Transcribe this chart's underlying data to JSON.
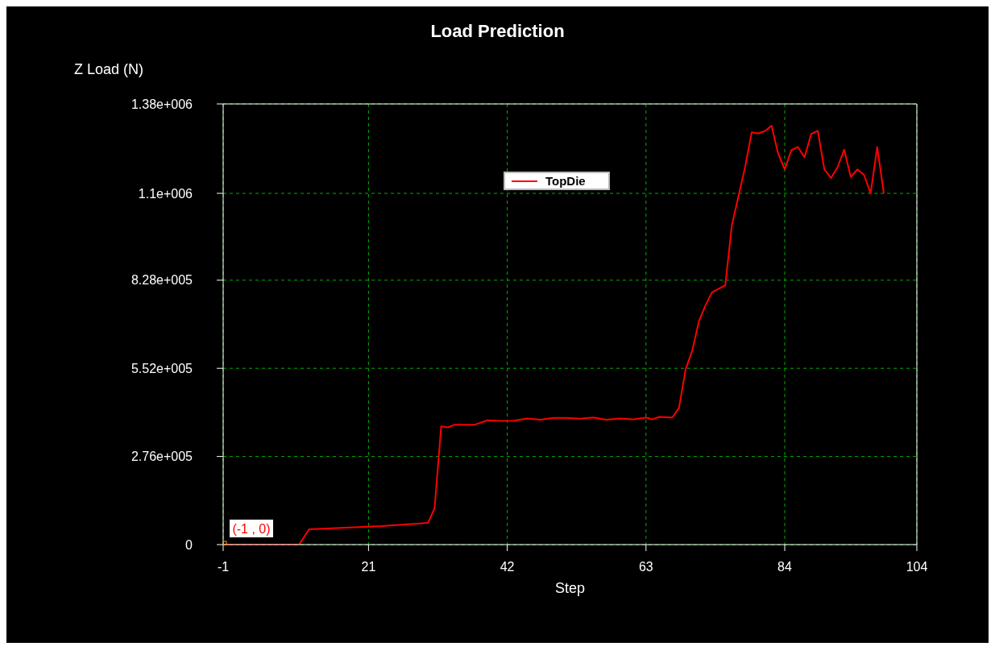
{
  "chart_data": {
    "type": "line",
    "title": "Load Prediction",
    "xlabel": "Step",
    "ylabel": "Z Load (N)",
    "xlim": [
      -1,
      104
    ],
    "ylim": [
      0,
      1380000
    ],
    "xticks": [
      -1,
      21,
      42,
      63,
      84,
      104
    ],
    "yticks": [
      0,
      {
        "value": 276000,
        "label": "2.76e+005"
      },
      {
        "value": 552000,
        "label": "5.52e+005"
      },
      {
        "value": 828000,
        "label": "8.28e+005"
      },
      {
        "value": 1100000,
        "label": "1.1e+006"
      },
      {
        "value": 1380000,
        "label": "1.38e+006"
      }
    ],
    "grid": true,
    "legend": "top",
    "marker": "none",
    "line_style": "solid",
    "annotations": [
      {
        "text": "(-1 , 0)",
        "x": -1,
        "y": 0
      }
    ],
    "series": [
      {
        "name": "TopDie",
        "color": "#ff0000",
        "x": [
          -1,
          10.5,
          12,
          23,
          30,
          31,
          32,
          33,
          34,
          37,
          39,
          41,
          43,
          45,
          47,
          49,
          51,
          53,
          55,
          57,
          59,
          61,
          63,
          64,
          65,
          67,
          68,
          69,
          70,
          71,
          72,
          73,
          75,
          76,
          78,
          79,
          80,
          81,
          82,
          83,
          84,
          85,
          86,
          87,
          88,
          89,
          90,
          91,
          92,
          93,
          94,
          95,
          96,
          97,
          98,
          99
        ],
        "values": [
          0,
          0,
          48000,
          58000,
          68000,
          114000,
          370000,
          367000,
          375000,
          375000,
          389000,
          387000,
          388000,
          395000,
          391000,
          397000,
          397000,
          394000,
          398000,
          391000,
          395000,
          392000,
          398000,
          392000,
          400000,
          398000,
          428000,
          549000,
          607000,
          699000,
          749000,
          790000,
          812000,
          1000000,
          1182000,
          1291000,
          1288000,
          1295000,
          1312000,
          1225000,
          1175000,
          1235000,
          1245000,
          1213000,
          1286000,
          1296000,
          1175000,
          1148000,
          1182000,
          1237000,
          1151000,
          1175000,
          1158000,
          1100000,
          1245000,
          1100000
        ]
      }
    ]
  }
}
